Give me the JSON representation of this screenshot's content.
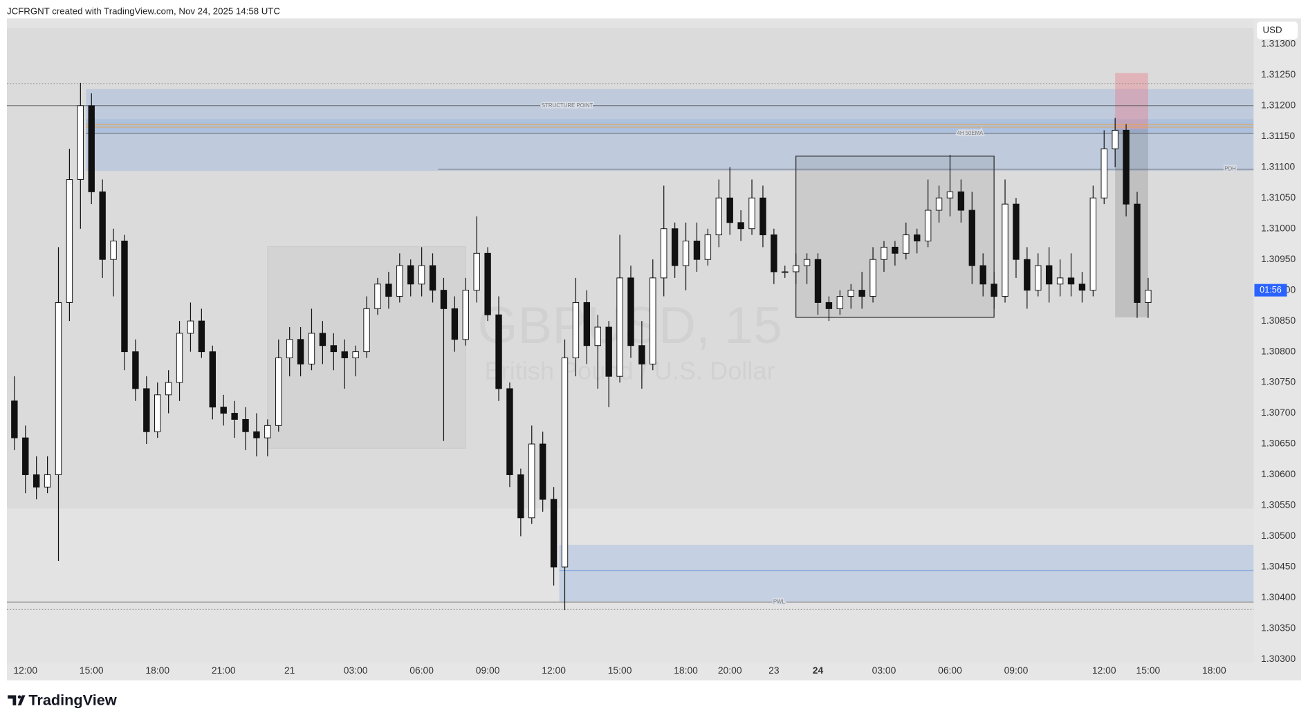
{
  "header": "JCFRGNT created with TradingView.com, Nov 24, 2025 14:58 UTC",
  "logo": "TradingView",
  "chart_data": {
    "type": "candlestick",
    "title": "GBPUSD, 15",
    "subtitle": "British Pound / U.S. Dollar",
    "currency": "USD",
    "countdown": "01:56",
    "up_color": "#ffffff",
    "down_color": "#111111",
    "wick_color": "#111111",
    "highlight_category": 73,
    "categories": [
      null,
      "12:00",
      null,
      null,
      null,
      null,
      null,
      "15:00",
      null,
      null,
      null,
      null,
      null,
      "18:00",
      null,
      null,
      null,
      null,
      null,
      "21:00",
      null,
      null,
      null,
      null,
      null,
      "21",
      null,
      null,
      null,
      null,
      null,
      "03:00",
      null,
      null,
      null,
      null,
      null,
      "06:00",
      null,
      null,
      null,
      null,
      null,
      "09:00",
      null,
      null,
      null,
      null,
      null,
      "12:00",
      null,
      null,
      null,
      null,
      null,
      "15:00",
      null,
      null,
      null,
      null,
      null,
      "18:00",
      null,
      null,
      null,
      "20:00",
      null,
      null,
      null,
      "23",
      null,
      null,
      null,
      "24",
      null,
      null,
      null,
      null,
      null,
      "03:00",
      null,
      null,
      null,
      null,
      null,
      "06:00",
      null,
      null,
      null,
      null,
      null,
      "09:00",
      null,
      null,
      null,
      null,
      null,
      null,
      null,
      "12:00",
      null,
      null,
      null,
      "15:00",
      null,
      null,
      null,
      null,
      null,
      "18:00"
    ],
    "ohlc": [
      [
        1.3072,
        1.3076,
        1.3064,
        1.3066
      ],
      [
        1.3066,
        1.3068,
        1.3057,
        1.306
      ],
      [
        1.306,
        1.3063,
        1.3056,
        1.3058
      ],
      [
        1.3058,
        1.3063,
        1.3057,
        1.306
      ],
      [
        1.306,
        1.3097,
        1.3046,
        1.3088
      ],
      [
        1.3088,
        1.3113,
        1.3085,
        1.3108
      ],
      [
        1.3108,
        1.31237,
        1.31,
        1.312
      ],
      [
        1.312,
        1.3122,
        1.3104,
        1.3106
      ],
      [
        1.3106,
        1.3108,
        1.3092,
        1.3095
      ],
      [
        1.3095,
        1.31,
        1.3089,
        1.3098
      ],
      [
        1.3098,
        1.3099,
        1.3077,
        1.308
      ],
      [
        1.308,
        1.3082,
        1.3072,
        1.3074
      ],
      [
        1.3074,
        1.3076,
        1.3065,
        1.3067
      ],
      [
        1.3067,
        1.3075,
        1.3066,
        1.3073
      ],
      [
        1.3073,
        1.3077,
        1.307,
        1.3075
      ],
      [
        1.3075,
        1.3085,
        1.3072,
        1.3083
      ],
      [
        1.3083,
        1.3088,
        1.308,
        1.3085
      ],
      [
        1.3085,
        1.3087,
        1.3079,
        1.308
      ],
      [
        1.308,
        1.3081,
        1.3069,
        1.3071
      ],
      [
        1.3071,
        1.3073,
        1.3068,
        1.307
      ],
      [
        1.307,
        1.3072,
        1.3066,
        1.3069
      ],
      [
        1.3069,
        1.3071,
        1.3064,
        1.3067
      ],
      [
        1.3067,
        1.307,
        1.3063,
        1.3066
      ],
      [
        1.3066,
        1.3069,
        1.3063,
        1.3068
      ],
      [
        1.3068,
        1.3082,
        1.3067,
        1.3079
      ],
      [
        1.3079,
        1.3084,
        1.3076,
        1.3082
      ],
      [
        1.3082,
        1.3084,
        1.3076,
        1.3078
      ],
      [
        1.3078,
        1.3087,
        1.3077,
        1.3083
      ],
      [
        1.3083,
        1.3085,
        1.3078,
        1.3081
      ],
      [
        1.3081,
        1.3083,
        1.3077,
        1.308
      ],
      [
        1.308,
        1.3082,
        1.3074,
        1.3079
      ],
      [
        1.3079,
        1.3081,
        1.3076,
        1.308
      ],
      [
        1.308,
        1.3089,
        1.3079,
        1.3087
      ],
      [
        1.3087,
        1.3092,
        1.3086,
        1.3091
      ],
      [
        1.3091,
        1.3093,
        1.3087,
        1.3089
      ],
      [
        1.3089,
        1.3096,
        1.3088,
        1.3094
      ],
      [
        1.3094,
        1.3095,
        1.3089,
        1.3091
      ],
      [
        1.3091,
        1.3097,
        1.3089,
        1.3094
      ],
      [
        1.3094,
        1.3096,
        1.3088,
        1.309
      ],
      [
        1.309,
        1.3092,
        1.30655,
        1.3087
      ],
      [
        1.3087,
        1.3089,
        1.308,
        1.3082
      ],
      [
        1.3082,
        1.3092,
        1.3081,
        1.309
      ],
      [
        1.309,
        1.3102,
        1.3088,
        1.3096
      ],
      [
        1.3096,
        1.3097,
        1.3085,
        1.3086
      ],
      [
        1.3086,
        1.3089,
        1.3072,
        1.3074
      ],
      [
        1.3074,
        1.3075,
        1.3058,
        1.306
      ],
      [
        1.306,
        1.3061,
        1.305,
        1.3053
      ],
      [
        1.3053,
        1.3068,
        1.3052,
        1.3065
      ],
      [
        1.3065,
        1.3067,
        1.3054,
        1.3056
      ],
      [
        1.3056,
        1.3058,
        1.3042,
        1.3045
      ],
      [
        1.3045,
        1.3082,
        1.3038,
        1.3079
      ],
      [
        1.3079,
        1.3092,
        1.3076,
        1.3088
      ],
      [
        1.3088,
        1.309,
        1.3078,
        1.3081
      ],
      [
        1.3081,
        1.3086,
        1.3074,
        1.3084
      ],
      [
        1.3084,
        1.3085,
        1.3071,
        1.3076
      ],
      [
        1.3076,
        1.3099,
        1.3075,
        1.3092
      ],
      [
        1.3092,
        1.3094,
        1.3079,
        1.3081
      ],
      [
        1.3081,
        1.3085,
        1.3074,
        1.3078
      ],
      [
        1.3078,
        1.3095,
        1.3077,
        1.3092
      ],
      [
        1.3092,
        1.3107,
        1.3089,
        1.31
      ],
      [
        1.31,
        1.3101,
        1.3092,
        1.3094
      ],
      [
        1.3094,
        1.3101,
        1.309,
        1.3098
      ],
      [
        1.3098,
        1.3101,
        1.3093,
        1.3095
      ],
      [
        1.3095,
        1.31,
        1.3094,
        1.3099
      ],
      [
        1.3099,
        1.3108,
        1.3097,
        1.3105
      ],
      [
        1.3105,
        1.311,
        1.3099,
        1.3101
      ],
      [
        1.3101,
        1.3103,
        1.3098,
        1.31
      ],
      [
        1.31,
        1.3108,
        1.3099,
        1.3105
      ],
      [
        1.3105,
        1.3107,
        1.3097,
        1.3099
      ],
      [
        1.3099,
        1.31,
        1.3091,
        1.3093
      ],
      [
        1.3093,
        1.3094,
        1.3092,
        1.3093
      ],
      [
        1.3093,
        1.3096,
        1.3091,
        1.3094
      ],
      [
        1.3094,
        1.3096,
        1.3091,
        1.3095
      ],
      [
        1.3095,
        1.3096,
        1.3086,
        1.3088
      ],
      [
        1.3088,
        1.3089,
        1.3085,
        1.3087
      ],
      [
        1.3087,
        1.309,
        1.3086,
        1.3089
      ],
      [
        1.3089,
        1.3091,
        1.3087,
        1.309
      ],
      [
        1.309,
        1.3093,
        1.3087,
        1.3089
      ],
      [
        1.3089,
        1.3097,
        1.3088,
        1.3095
      ],
      [
        1.3095,
        1.3098,
        1.3093,
        1.3097
      ],
      [
        1.3097,
        1.3098,
        1.3094,
        1.3096
      ],
      [
        1.3096,
        1.3101,
        1.3095,
        1.3099
      ],
      [
        1.3099,
        1.31,
        1.3096,
        1.3098
      ],
      [
        1.3098,
        1.3108,
        1.3097,
        1.3103
      ],
      [
        1.3103,
        1.3107,
        1.3101,
        1.3105
      ],
      [
        1.3105,
        1.3112,
        1.3102,
        1.3106
      ],
      [
        1.3106,
        1.3108,
        1.3101,
        1.3103
      ],
      [
        1.3103,
        1.3106,
        1.3091,
        1.3094
      ],
      [
        1.3094,
        1.3096,
        1.3089,
        1.3091
      ],
      [
        1.3091,
        1.3093,
        1.3087,
        1.3089
      ],
      [
        1.3089,
        1.3108,
        1.3088,
        1.3104
      ],
      [
        1.3104,
        1.3105,
        1.3092,
        1.3095
      ],
      [
        1.3095,
        1.3097,
        1.3087,
        1.309
      ],
      [
        1.309,
        1.3096,
        1.3089,
        1.3094
      ],
      [
        1.3094,
        1.3097,
        1.3088,
        1.3091
      ],
      [
        1.3091,
        1.3095,
        1.3089,
        1.3092
      ],
      [
        1.3092,
        1.3096,
        1.3089,
        1.3091
      ],
      [
        1.3091,
        1.3093,
        1.3088,
        1.309
      ],
      [
        1.309,
        1.3107,
        1.3089,
        1.3105
      ],
      [
        1.3105,
        1.3116,
        1.3104,
        1.3113
      ],
      [
        1.3113,
        1.3118,
        1.311,
        1.3116
      ],
      [
        1.3116,
        1.3117,
        1.3102,
        1.3104
      ],
      [
        1.3104,
        1.3106,
        1.30855,
        1.3088
      ],
      [
        1.3088,
        1.3092,
        1.30855,
        1.309
      ],
      null,
      null,
      null,
      null,
      null,
      null
    ],
    "ylim": [
      1.30297,
      1.31342
    ],
    "yticks": [
      {
        "value": 1.303,
        "label": "1.30300"
      },
      {
        "value": 1.3035,
        "label": "1.30350"
      },
      {
        "value": 1.304,
        "label": "1.30400"
      },
      {
        "value": 1.3045,
        "label": "1.30450"
      },
      {
        "value": 1.305,
        "label": "1.30500"
      },
      {
        "value": 1.3055,
        "label": "1.30550"
      },
      {
        "value": 1.306,
        "label": "1.30600"
      },
      {
        "value": 1.3065,
        "label": "1.30650"
      },
      {
        "value": 1.307,
        "label": "1.30700"
      },
      {
        "value": 1.3075,
        "label": "1.30750"
      },
      {
        "value": 1.308,
        "label": "1.30800"
      },
      {
        "value": 1.3085,
        "label": "1.30850"
      },
      {
        "value": 1.309,
        "label": "1.30900"
      },
      {
        "value": 1.3095,
        "label": "1.30950"
      },
      {
        "value": 1.31,
        "label": "1.31000"
      },
      {
        "value": 1.3105,
        "label": "1.31050"
      },
      {
        "value": 1.311,
        "label": "1.31100"
      },
      {
        "value": 1.3115,
        "label": "1.31150"
      },
      {
        "value": 1.312,
        "label": "1.31200"
      },
      {
        "value": 1.3125,
        "label": "1.31250"
      },
      {
        "value": 1.313,
        "label": "1.31300"
      }
    ],
    "grid": false,
    "zones": [
      {
        "from": 1.30545,
        "to": 1.31326,
        "start": 0,
        "color": "rgba(0,0,0,0.035)"
      },
      {
        "from": 1.31094,
        "to": 1.31227,
        "start": 7,
        "color": "rgba(120,160,225,0.28)"
      },
      {
        "from": 1.31155,
        "to": 1.31178,
        "start": 7,
        "color": "rgba(120,160,225,0.25)"
      },
      {
        "from": 1.30394,
        "to": 1.30486,
        "start": 50,
        "color": "rgba(120,160,225,0.28)"
      }
    ],
    "boxes": [
      {
        "start": 23,
        "end": 41,
        "from": 1.30643,
        "to": 1.30971,
        "fill": "rgba(0,0,0,0.035)",
        "stroke": "#cdcdcd"
      },
      {
        "start": 71,
        "end": 89,
        "from": 1.30856,
        "to": 1.31118,
        "fill": "rgba(0,0,0,0.07)",
        "stroke": "#222222"
      },
      {
        "start": 100,
        "end": 103,
        "from": 1.31162,
        "to": 1.31253,
        "fill": "rgba(235,110,120,0.35)",
        "stroke": "none"
      },
      {
        "start": 100,
        "end": 103,
        "from": 1.30856,
        "to": 1.31162,
        "fill": "rgba(0,0,0,0.12)",
        "stroke": "none"
      }
    ],
    "levels": [
      {
        "label": "STRUCTURE POINT",
        "value": 1.312,
        "start": 0,
        "color": "#555555"
      },
      {
        "value": 1.3117,
        "start": 7,
        "color": "#f0a030"
      },
      {
        "value": 1.31165,
        "start": 7,
        "color": "#f0a030"
      },
      {
        "label": "4H 50EMA",
        "value": 1.31155,
        "start": 7,
        "color": "#666666"
      },
      {
        "label": "PDH",
        "value": 1.31097,
        "start": 39,
        "color": "#555555"
      },
      {
        "value": 1.30444,
        "start": 50,
        "color": "#5b8fd6"
      },
      {
        "label": "PWL",
        "value": 1.30393,
        "start": 0,
        "color": "#555555"
      },
      {
        "value": 1.31236,
        "start": 0,
        "color": "#888888",
        "dash": true
      },
      {
        "value": 1.30381,
        "start": 0,
        "color": "#888888",
        "dash": true
      }
    ]
  }
}
